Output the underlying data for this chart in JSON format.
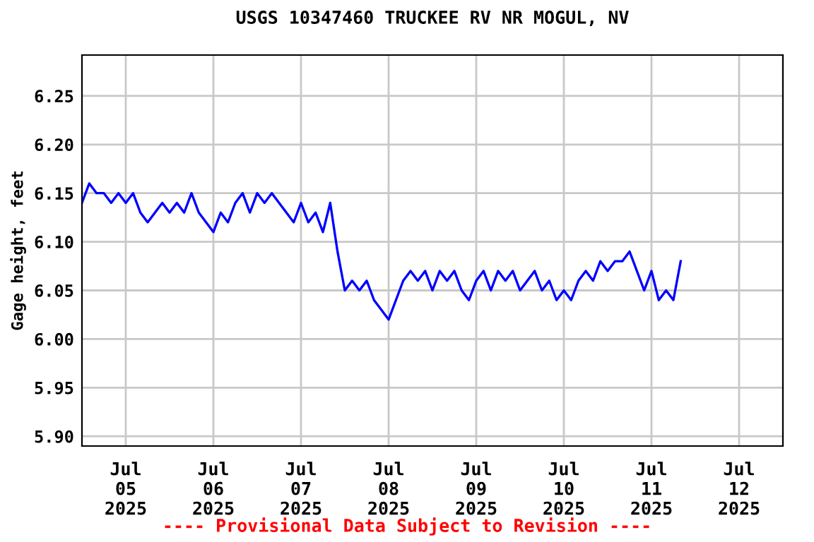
{
  "chart_data": {
    "type": "line",
    "title": "USGS 10347460 TRUCKEE RV NR MOGUL, NV",
    "ylabel": "Gage height, feet",
    "annotations": [
      "---- Provisional Data Subject to Revision ----"
    ],
    "x": [
      "2025-07-04T12:00",
      "2025-07-04T14:00",
      "2025-07-04T16:00",
      "2025-07-04T18:00",
      "2025-07-04T20:00",
      "2025-07-04T22:00",
      "2025-07-05T00:00",
      "2025-07-05T02:00",
      "2025-07-05T04:00",
      "2025-07-05T06:00",
      "2025-07-05T08:00",
      "2025-07-05T10:00",
      "2025-07-05T12:00",
      "2025-07-05T14:00",
      "2025-07-05T16:00",
      "2025-07-05T18:00",
      "2025-07-05T20:00",
      "2025-07-05T22:00",
      "2025-07-06T00:00",
      "2025-07-06T02:00",
      "2025-07-06T04:00",
      "2025-07-06T06:00",
      "2025-07-06T08:00",
      "2025-07-06T10:00",
      "2025-07-06T12:00",
      "2025-07-06T14:00",
      "2025-07-06T16:00",
      "2025-07-06T18:00",
      "2025-07-06T20:00",
      "2025-07-06T22:00",
      "2025-07-07T00:00",
      "2025-07-07T02:00",
      "2025-07-07T04:00",
      "2025-07-07T06:00",
      "2025-07-07T08:00",
      "2025-07-07T10:00",
      "2025-07-07T12:00",
      "2025-07-07T14:00",
      "2025-07-07T16:00",
      "2025-07-07T18:00",
      "2025-07-07T20:00",
      "2025-07-07T22:00",
      "2025-07-08T00:00",
      "2025-07-08T02:00",
      "2025-07-08T04:00",
      "2025-07-08T06:00",
      "2025-07-08T08:00",
      "2025-07-08T10:00",
      "2025-07-08T12:00",
      "2025-07-08T14:00",
      "2025-07-08T16:00",
      "2025-07-08T18:00",
      "2025-07-08T20:00",
      "2025-07-08T22:00",
      "2025-07-09T00:00",
      "2025-07-09T02:00",
      "2025-07-09T04:00",
      "2025-07-09T06:00",
      "2025-07-09T08:00",
      "2025-07-09T10:00",
      "2025-07-09T12:00",
      "2025-07-09T14:00",
      "2025-07-09T16:00",
      "2025-07-09T18:00",
      "2025-07-09T20:00",
      "2025-07-09T22:00",
      "2025-07-10T00:00",
      "2025-07-10T02:00",
      "2025-07-10T04:00",
      "2025-07-10T06:00",
      "2025-07-10T08:00",
      "2025-07-10T10:00",
      "2025-07-10T12:00",
      "2025-07-10T14:00",
      "2025-07-10T16:00",
      "2025-07-10T18:00",
      "2025-07-10T20:00",
      "2025-07-10T22:00",
      "2025-07-11T00:00",
      "2025-07-11T02:00",
      "2025-07-11T04:00",
      "2025-07-11T06:00",
      "2025-07-11T08:00"
    ],
    "series": [
      {
        "color": "#0000ff",
        "values": [
          6.14,
          6.16,
          6.15,
          6.15,
          6.14,
          6.15,
          6.14,
          6.15,
          6.13,
          6.12,
          6.13,
          6.14,
          6.13,
          6.14,
          6.13,
          6.15,
          6.13,
          6.12,
          6.11,
          6.13,
          6.12,
          6.14,
          6.15,
          6.13,
          6.15,
          6.14,
          6.15,
          6.14,
          6.13,
          6.12,
          6.14,
          6.12,
          6.13,
          6.11,
          6.14,
          6.09,
          6.05,
          6.06,
          6.05,
          6.06,
          6.04,
          6.03,
          6.02,
          6.04,
          6.06,
          6.07,
          6.06,
          6.07,
          6.05,
          6.07,
          6.06,
          6.07,
          6.05,
          6.04,
          6.06,
          6.07,
          6.05,
          6.07,
          6.06,
          6.07,
          6.05,
          6.06,
          6.07,
          6.05,
          6.06,
          6.04,
          6.05,
          6.04,
          6.06,
          6.07,
          6.06,
          6.08,
          6.07,
          6.08,
          6.08,
          6.09,
          6.07,
          6.05,
          6.07,
          6.04,
          6.05,
          6.04,
          6.08
        ]
      }
    ],
    "xlim": [
      "2025-07-04T12:00",
      "2025-07-12T12:00"
    ],
    "xticks": [
      {
        "value": "2025-07-05",
        "label": "Jul\n05\n2025"
      },
      {
        "value": "2025-07-06",
        "label": "Jul\n06\n2025"
      },
      {
        "value": "2025-07-07",
        "label": "Jul\n07\n2025"
      },
      {
        "value": "2025-07-08",
        "label": "Jul\n08\n2025"
      },
      {
        "value": "2025-07-09",
        "label": "Jul\n09\n2025"
      },
      {
        "value": "2025-07-10",
        "label": "Jul\n10\n2025"
      },
      {
        "value": "2025-07-11",
        "label": "Jul\n11\n2025"
      },
      {
        "value": "2025-07-12",
        "label": "Jul\n12\n2025"
      }
    ],
    "ylim": [
      5.89,
      6.292
    ],
    "yticks": [
      {
        "value": 5.9,
        "label": "5.90"
      },
      {
        "value": 5.95,
        "label": "5.95"
      },
      {
        "value": 6.0,
        "label": "6.00"
      },
      {
        "value": 6.05,
        "label": "6.05"
      },
      {
        "value": 6.1,
        "label": "6.10"
      },
      {
        "value": 6.15,
        "label": "6.15"
      },
      {
        "value": 6.2,
        "label": "6.20"
      },
      {
        "value": 6.25,
        "label": "6.25"
      }
    ],
    "grid": true,
    "legend": false
  }
}
